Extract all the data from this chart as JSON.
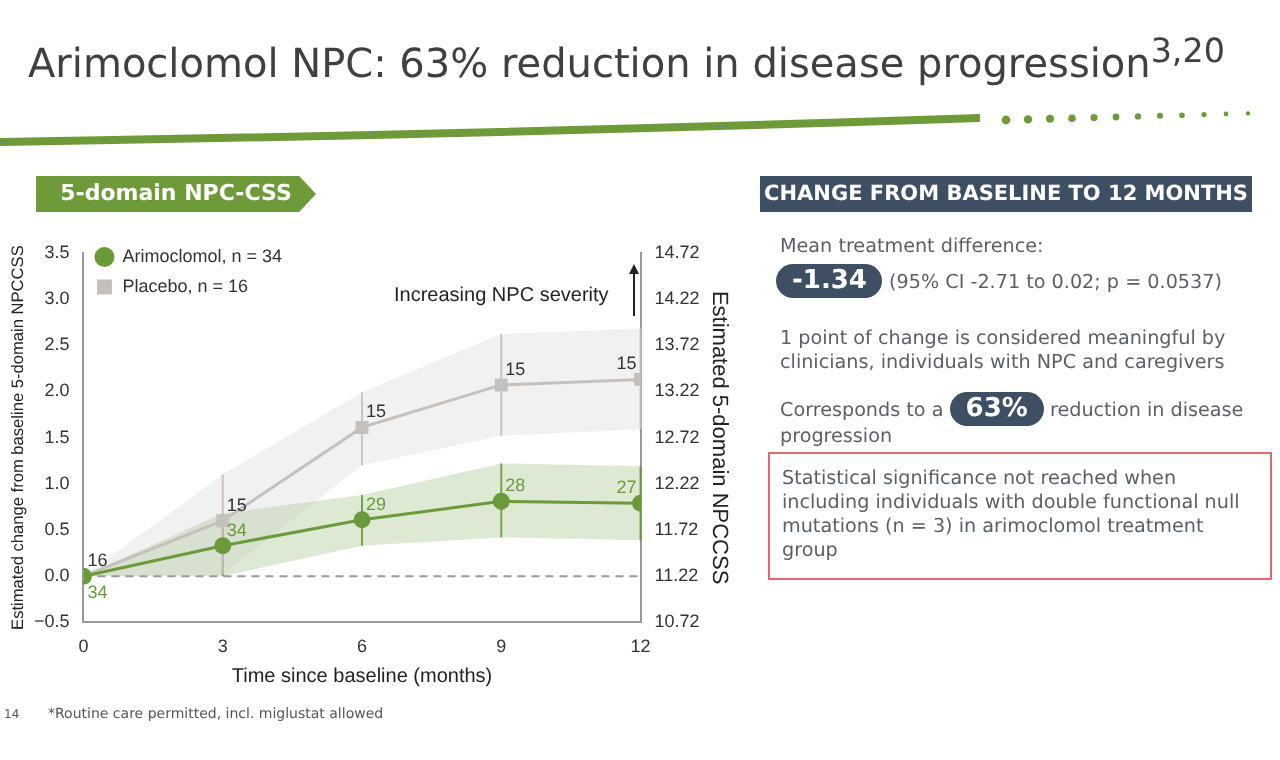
{
  "chart_data": {
    "type": "line",
    "title": "Arimoclomol NPC: 63% reduction in disease progression$^{3,20}$",
    "subtitle": "5-domain NPC-CSS",
    "xlabel": "Time since baseline (months)",
    "ylabel": "Estimated change from baseline 5-domain NPCCSS",
    "y2label": "Estimated 5-domain NPCCSS",
    "x": [
      0,
      3,
      6,
      9,
      12
    ],
    "xlim": [
      0,
      12
    ],
    "xticks": [
      0,
      3,
      6,
      9,
      12
    ],
    "ylim": [
      -0.5,
      3.5
    ],
    "yticks": [
      {
        "value": -0.5,
        "label": "−0.5"
      },
      {
        "value": 0,
        "label": "0.0"
      },
      {
        "value": 0.5,
        "label": "0.5"
      },
      {
        "value": 1,
        "label": "1.0"
      },
      {
        "value": 1.5,
        "label": "1.5"
      },
      {
        "value": 2,
        "label": "2.0"
      },
      {
        "value": 2.5,
        "label": "2.5"
      },
      {
        "value": 3,
        "label": "3.0"
      },
      {
        "value": 3.5,
        "label": "3.5"
      }
    ],
    "y2lim": [
      10.72,
      14.72
    ],
    "y2ticks": [
      10.72,
      11.22,
      11.72,
      12.22,
      12.72,
      13.22,
      13.72,
      14.22,
      14.72
    ],
    "series": [
      {
        "name": "Arimoclomol, n = 34",
        "color": "#6a9a3a",
        "marker": "circle",
        "values": [
          0,
          0.33,
          0.61,
          0.81,
          0.79
        ],
        "errors": [
          null,
          [
            0,
            0.68
          ],
          [
            0.33,
            0.88
          ],
          [
            0.42,
            1.22
          ],
          [
            0.39,
            1.19
          ]
        ],
        "lower": [
          0,
          0,
          0.33,
          0.42,
          0.39
        ],
        "upper": [
          0,
          0.68,
          0.88,
          1.22,
          1.19
        ]
      },
      {
        "name": "Placebo, n = 16",
        "color": "#c4c0bd",
        "marker": "square",
        "values": [
          0,
          0.6,
          1.61,
          2.07,
          2.13
        ],
        "errors": [
          null,
          [
            0.02,
            1.1
          ],
          [
            1.2,
            1.99
          ],
          [
            1.52,
            2.62
          ],
          [
            1.59,
            2.68
          ]
        ],
        "lower": [
          0,
          0.02,
          1.2,
          1.52,
          1.59
        ],
        "upper": [
          0,
          1.1,
          1.99,
          2.62,
          2.68
        ]
      }
    ],
    "ref_lines": [
      {
        "axis": "y",
        "value": 0,
        "line_style": "dashed",
        "color": "#999999"
      }
    ],
    "legend": "top left",
    "grid": false,
    "annotations": [
      "Increasing NPC severity",
      {
        "text": "34",
        "x": 0,
        "y": 0
      },
      {
        "text": "34",
        "x": 3,
        "y": 0.33
      },
      {
        "text": "29",
        "x": 6,
        "y": 0.61
      },
      {
        "text": "28",
        "x": 9,
        "y": 0.81
      },
      {
        "text": "27",
        "x": 12,
        "y": 0.79
      },
      {
        "text": "16",
        "x": 0,
        "y": 0
      },
      {
        "text": "15",
        "x": 3,
        "y": 0.6
      },
      {
        "text": "15",
        "x": 6,
        "y": 1.61
      },
      {
        "text": "15",
        "x": 9,
        "y": 2.07
      },
      {
        "text": "15",
        "x": 12,
        "y": 2.13
      },
      "CHANGE FROM BASELINE TO 12 MONTHS",
      "Mean treatment difference:",
      "-1.34",
      "(95% CI -2.71 to 0.02; p = 0.0537)",
      "1 point of change is considered meaningful by clinicians, individuals with NPC and caregivers",
      "Corresponds to a",
      "63%",
      "reduction in disease progression",
      "Statistical significance not reached when including individuals with double functional null mutations (n = 3) in arimoclomol treatment group",
      "*Routine care permitted, incl. miglustat allowed",
      "14"
    ]
  }
}
